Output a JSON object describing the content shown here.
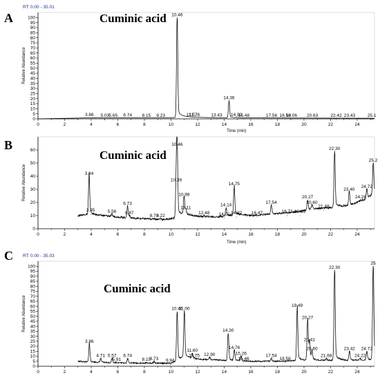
{
  "chart_data": [
    {
      "type": "line",
      "panel": "A",
      "rt_label": "RT:",
      "rt_range": "0.00 - 35.01",
      "annotation": "Cuminic acid",
      "xlabel": "Time (min)",
      "ylabel": "Relative Abundance",
      "xlim": [
        0,
        25.3
      ],
      "ylim": [
        0,
        105
      ],
      "x_ticks": [
        0,
        2,
        4,
        6,
        8,
        10,
        12,
        14,
        16,
        18,
        20,
        22,
        24
      ],
      "y_ticks": [
        0,
        5,
        10,
        15,
        20,
        25,
        30,
        35,
        40,
        45,
        50,
        55,
        60,
        65,
        70,
        75,
        80,
        85,
        90,
        95,
        100
      ],
      "baseline": [
        [
          0,
          0
        ],
        [
          3.8,
          1.0
        ],
        [
          10.2,
          1.2
        ],
        [
          11.0,
          2.0
        ],
        [
          13,
          1.2
        ],
        [
          16,
          1.0
        ],
        [
          20,
          0.8
        ],
        [
          25.3,
          0.6
        ]
      ],
      "peaks": [
        {
          "rt": 3.86,
          "label": "3.86",
          "height": 1.2
        },
        {
          "rt": 5.03,
          "label": "5.03",
          "height": 0.6
        },
        {
          "rt": 5.65,
          "label": "5.65",
          "height": 0.6
        },
        {
          "rt": 6.74,
          "label": "6.74",
          "height": 1.0
        },
        {
          "rt": 8.15,
          "label": "8.15",
          "height": 0.6
        },
        {
          "rt": 9.23,
          "label": "9.23",
          "height": 0.6
        },
        {
          "rt": 10.46,
          "label": "10.46",
          "height": 100
        },
        {
          "rt": 11.57,
          "label": "11.57",
          "height": 1.5
        },
        {
          "rt": 11.76,
          "label": "11.76",
          "height": 1.2
        },
        {
          "rt": 13.43,
          "label": "13.43",
          "height": 1.0
        },
        {
          "rt": 14.36,
          "label": "14.36",
          "height": 18
        },
        {
          "rt": 14.92,
          "label": "14.92",
          "height": 1.5
        },
        {
          "rt": 15.48,
          "label": "15.48",
          "height": 0.6
        },
        {
          "rt": 17.56,
          "label": "17.56",
          "height": 0.6
        },
        {
          "rt": 18.58,
          "label": "18.58",
          "height": 0.6
        },
        {
          "rt": 19.06,
          "label": "19.06",
          "height": 0.6
        },
        {
          "rt": 20.63,
          "label": "20.63",
          "height": 0.6
        },
        {
          "rt": 22.42,
          "label": "22.42",
          "height": 0.6
        },
        {
          "rt": 23.43,
          "label": "23.43",
          "height": 0.6
        },
        {
          "rt": 25.1,
          "label": "25.1",
          "height": 0.6
        }
      ]
    },
    {
      "type": "line",
      "panel": "B",
      "annotation": "Cuminic acid",
      "xlabel": "Time (min)",
      "ylabel": "Relative Abundance",
      "xlim": [
        0,
        25.3
      ],
      "ylim": [
        0,
        70
      ],
      "x_ticks": [
        0,
        2,
        4,
        6,
        8,
        10,
        12,
        14,
        16,
        18,
        20,
        22,
        24
      ],
      "y_ticks": [
        0,
        10,
        20,
        30,
        40,
        50,
        60
      ],
      "baseline": [
        [
          3.0,
          10
        ],
        [
          3.6,
          11
        ],
        [
          5,
          10
        ],
        [
          7,
          8
        ],
        [
          9.5,
          7
        ],
        [
          10.2,
          8
        ],
        [
          11,
          11
        ],
        [
          12,
          9.5
        ],
        [
          13.5,
          9
        ],
        [
          15,
          11
        ],
        [
          16,
          10
        ],
        [
          18,
          11.5
        ],
        [
          19.5,
          13
        ],
        [
          20.5,
          15
        ],
        [
          22,
          16
        ],
        [
          23.5,
          18
        ],
        [
          24.5,
          22
        ],
        [
          25.3,
          27
        ]
      ],
      "peaks": [
        {
          "rt": 3.84,
          "label": "3.84",
          "height": 40
        },
        {
          "rt": 3.95,
          "label": "3.95",
          "height": 12
        },
        {
          "rt": 5.56,
          "label": "5.56",
          "height": 11
        },
        {
          "rt": 6.73,
          "label": "6.73",
          "height": 17
        },
        {
          "rt": 6.87,
          "label": "6.87",
          "height": 10
        },
        {
          "rt": 8.73,
          "label": "8.73",
          "height": 8
        },
        {
          "rt": 9.22,
          "label": "9.22",
          "height": 8
        },
        {
          "rt": 10.46,
          "label": "10.46",
          "height": 62
        },
        {
          "rt": 10.39,
          "label": "10.39",
          "height": 35
        },
        {
          "rt": 10.98,
          "label": "10.98",
          "height": 24
        },
        {
          "rt": 11.11,
          "label": "11.11",
          "height": 14
        },
        {
          "rt": 12.48,
          "label": "12.48",
          "height": 10
        },
        {
          "rt": 14.01,
          "label": "14.01",
          "height": 9
        },
        {
          "rt": 14.14,
          "label": "14.14",
          "height": 16
        },
        {
          "rt": 14.75,
          "label": "14.75",
          "height": 32
        },
        {
          "rt": 14.92,
          "label": "14.92",
          "height": 10
        },
        {
          "rt": 16.47,
          "label": "16.47",
          "height": 10
        },
        {
          "rt": 17.54,
          "label": "17.54",
          "height": 18
        },
        {
          "rt": 18.73,
          "label": "18.73",
          "height": 11
        },
        {
          "rt": 19.69,
          "label": "19.69",
          "height": 11
        },
        {
          "rt": 20.27,
          "label": "20.27",
          "height": 22
        },
        {
          "rt": 20.6,
          "label": "20.60",
          "height": 18
        },
        {
          "rt": 21.48,
          "label": "21.48",
          "height": 15
        },
        {
          "rt": 22.3,
          "label": "22.30",
          "height": 59
        },
        {
          "rt": 23.4,
          "label": "23.40",
          "height": 28
        },
        {
          "rt": 24.26,
          "label": "24.26",
          "height": 22
        },
        {
          "rt": 24.72,
          "label": "24.72",
          "height": 30
        },
        {
          "rt": 25.2,
          "label": "25.2",
          "height": 50
        }
      ]
    },
    {
      "type": "line",
      "panel": "C",
      "rt_label": "RT:",
      "rt_range": "0.00 - 35.03",
      "annotation": "Cuminic acid",
      "xlabel": "Time (min)",
      "ylabel": "Relative Abundance",
      "xlim": [
        0,
        25.3
      ],
      "ylim": [
        0,
        105
      ],
      "x_ticks": [
        0,
        2,
        4,
        6,
        8,
        10,
        12,
        14,
        16,
        18,
        20,
        22,
        24
      ],
      "y_ticks": [
        0,
        5,
        10,
        15,
        20,
        25,
        30,
        35,
        40,
        45,
        50,
        55,
        60,
        65,
        70,
        75,
        80,
        85,
        90,
        95,
        100
      ],
      "baseline": [
        [
          3.0,
          5
        ],
        [
          4,
          4
        ],
        [
          6,
          3.5
        ],
        [
          8,
          3
        ],
        [
          10,
          3
        ],
        [
          11,
          9
        ],
        [
          12,
          7
        ],
        [
          14,
          6
        ],
        [
          16,
          5
        ],
        [
          18,
          5
        ],
        [
          20,
          6
        ],
        [
          22,
          6
        ],
        [
          24,
          6
        ],
        [
          25.3,
          7
        ]
      ],
      "peaks": [
        {
          "rt": 3.86,
          "label": "3.86",
          "height": 22
        },
        {
          "rt": 4.71,
          "label": "4.71",
          "height": 8
        },
        {
          "rt": 5.57,
          "label": "5.57",
          "height": 8
        },
        {
          "rt": 5.91,
          "label": "5.91",
          "height": 4
        },
        {
          "rt": 6.74,
          "label": "6.74",
          "height": 8
        },
        {
          "rt": 8.15,
          "label": "8.15",
          "height": 4
        },
        {
          "rt": 8.73,
          "label": "8.73",
          "height": 5
        },
        {
          "rt": 9.94,
          "label": "9.94",
          "height": 3
        },
        {
          "rt": 10.46,
          "label": "10.46",
          "height": 55
        },
        {
          "rt": 11.0,
          "label": "11.00",
          "height": 55
        },
        {
          "rt": 11.6,
          "label": "11.60",
          "height": 13
        },
        {
          "rt": 11.75,
          "label": "11.75",
          "height": 8
        },
        {
          "rt": 12.9,
          "label": "12.90",
          "height": 9
        },
        {
          "rt": 14.3,
          "label": "14.30",
          "height": 33
        },
        {
          "rt": 14.76,
          "label": "14.76",
          "height": 16
        },
        {
          "rt": 15.26,
          "label": "15.26",
          "height": 10
        },
        {
          "rt": 15.46,
          "label": "15.46",
          "height": 5
        },
        {
          "rt": 17.54,
          "label": "17.54",
          "height": 8
        },
        {
          "rt": 18.58,
          "label": "18.58",
          "height": 5
        },
        {
          "rt": 19.49,
          "label": "19.49",
          "height": 58
        },
        {
          "rt": 20.27,
          "label": "20.27",
          "height": 46
        },
        {
          "rt": 20.41,
          "label": "20.41",
          "height": 24
        },
        {
          "rt": 20.6,
          "label": "20.60",
          "height": 15
        },
        {
          "rt": 21.68,
          "label": "21.68",
          "height": 8
        },
        {
          "rt": 22.3,
          "label": "22.30",
          "height": 96
        },
        {
          "rt": 23.42,
          "label": "23.42",
          "height": 15
        },
        {
          "rt": 24.22,
          "label": "24.22",
          "height": 8
        },
        {
          "rt": 24.72,
          "label": "24.72",
          "height": 15
        },
        {
          "rt": 25.2,
          "label": "25",
          "height": 100
        }
      ]
    }
  ]
}
